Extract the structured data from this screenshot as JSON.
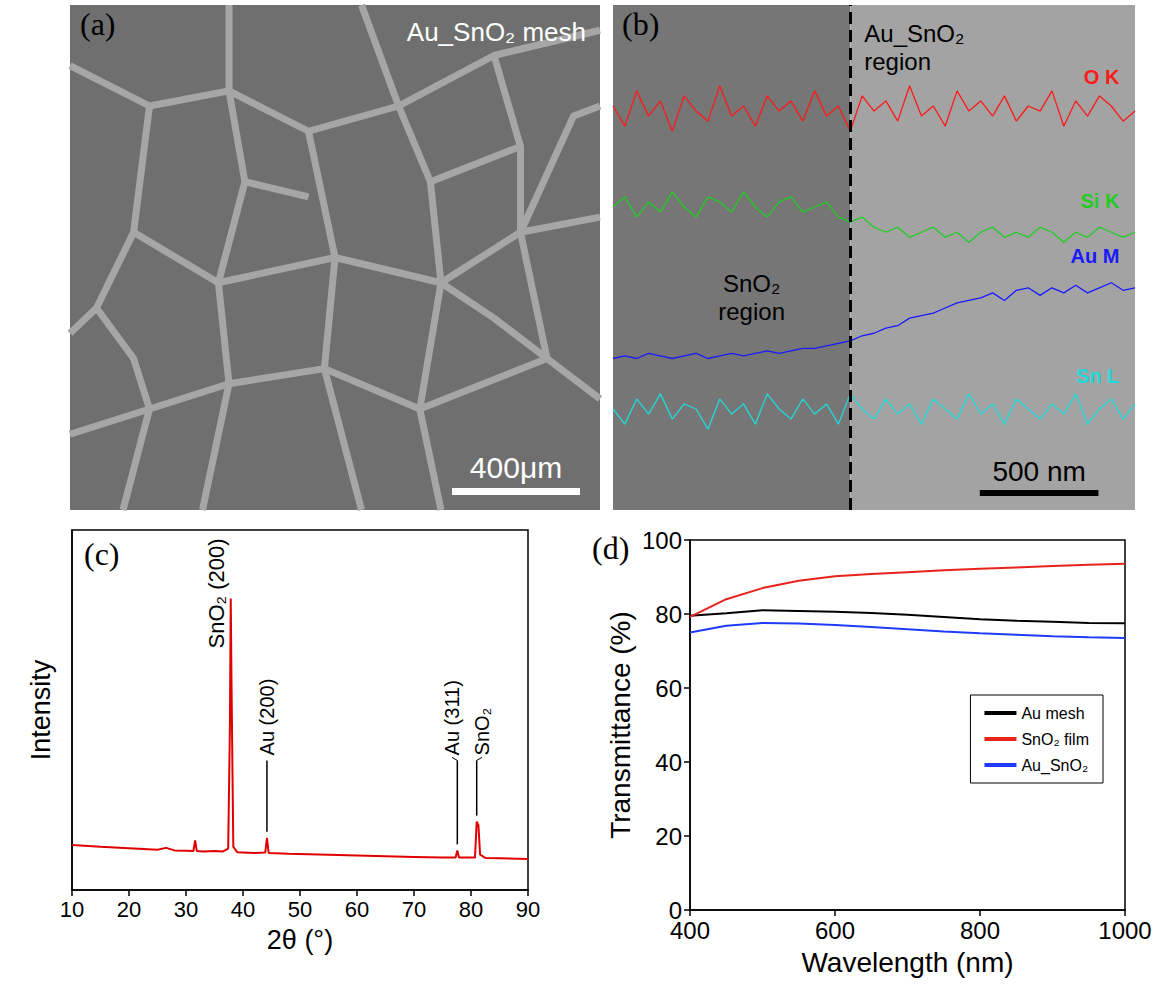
{
  "chart_data": [
    {
      "type": "image",
      "panel_label": "(a)",
      "title": "Au_SnO₂ mesh",
      "scale_bar": {
        "label": "400μm"
      }
    },
    {
      "type": "line",
      "panel_label": "(b)",
      "tick_labels": false,
      "xlim": [
        0,
        2200
      ],
      "ylim": [
        0,
        100
      ],
      "xticks": [],
      "yticks": [],
      "x": [
        0,
        50,
        100,
        150,
        200,
        250,
        300,
        350,
        400,
        450,
        500,
        550,
        600,
        650,
        700,
        750,
        800,
        850,
        900,
        950,
        1000,
        1050,
        1100,
        1150,
        1200,
        1250,
        1300,
        1350,
        1400,
        1450,
        1500,
        1550,
        1600,
        1650,
        1700,
        1750,
        1800,
        1850,
        1900,
        1950,
        2000,
        2050,
        2100,
        2150,
        2200
      ],
      "boundary_x": 1000,
      "regions": [
        "SnO₂ region",
        "Au_SnO₂ region"
      ],
      "scale_bar": {
        "label": "500 nm",
        "length": 500
      },
      "series": [
        {
          "name": "O K",
          "color": "#ff1a1a",
          "values": [
            80,
            76,
            83,
            78,
            81,
            75,
            82,
            79,
            77,
            84,
            78,
            80,
            76,
            82,
            79,
            81,
            77,
            83,
            78,
            80,
            75,
            82,
            79,
            81,
            77,
            84,
            78,
            80,
            76,
            83,
            79,
            81,
            78,
            82,
            77,
            80,
            79,
            83,
            76,
            81,
            78,
            82,
            80,
            77,
            79
          ]
        },
        {
          "name": "Si K",
          "color": "#22cc22",
          "values": [
            60,
            62,
            58,
            61,
            59,
            63,
            60,
            58,
            62,
            61,
            59,
            63,
            60,
            58,
            61,
            62,
            59,
            60,
            61,
            58,
            57,
            58,
            56,
            55,
            56,
            54,
            55,
            56,
            54,
            55,
            53,
            55,
            56,
            54,
            55,
            54,
            56,
            55,
            53,
            55,
            54,
            56,
            55,
            54,
            55
          ]
        },
        {
          "name": "Au M",
          "color": "#1a1aff",
          "values": [
            30,
            30.5,
            30,
            31,
            30.5,
            30,
            30.5,
            31,
            30,
            30.5,
            31,
            30.5,
            31,
            31.5,
            31,
            31.5,
            32,
            32,
            32.5,
            33,
            33.5,
            34.5,
            35,
            36,
            36.5,
            38,
            38.5,
            39,
            40,
            41,
            41.5,
            42,
            43,
            41.5,
            43.5,
            44,
            42.5,
            44,
            43,
            44.5,
            43,
            44,
            45,
            43.5,
            44
          ]
        },
        {
          "name": "Sn L",
          "color": "#22d8d8",
          "values": [
            20,
            17,
            22,
            19,
            23,
            18,
            21,
            20,
            16,
            22,
            19,
            21,
            17,
            23,
            20,
            18,
            22,
            19,
            21,
            17,
            23,
            20,
            18,
            22,
            19,
            21,
            17,
            22,
            20,
            18,
            23,
            19,
            21,
            17,
            22,
            20,
            18,
            21,
            19,
            23,
            17,
            20,
            22,
            18,
            21
          ]
        }
      ]
    },
    {
      "type": "line",
      "panel_label": "(c)",
      "x_label": "2θ (°)",
      "y_label": "Intensity",
      "xlim": [
        10,
        90
      ],
      "xticks": [
        10,
        20,
        30,
        40,
        50,
        60,
        70,
        80,
        90
      ],
      "ylim": [
        0,
        100
      ],
      "yticks": [],
      "tick_labels": "x",
      "grid": false,
      "color": "#e00000",
      "x": [
        10,
        15,
        20,
        25,
        26.5,
        28,
        30,
        31.3,
        31.6,
        31.9,
        33,
        35,
        36.5,
        37.4,
        37.7,
        37.85,
        38,
        38.3,
        39,
        42,
        43.9,
        44.2,
        44.5,
        48,
        55,
        60,
        65,
        70,
        75,
        77.3,
        77.6,
        77.9,
        80.7,
        81,
        81.3,
        81.6,
        82.5,
        85,
        90
      ],
      "values": [
        12.5,
        12,
        11.6,
        11.2,
        11.7,
        11,
        10.9,
        10.8,
        13.8,
        10.8,
        10.7,
        10.8,
        10.7,
        11.5,
        45,
        81,
        55,
        12,
        10.5,
        10.3,
        10.4,
        14.5,
        10.3,
        10.1,
        9.8,
        9.6,
        9.4,
        9.2,
        9,
        9,
        11,
        9,
        9,
        19,
        18,
        9.8,
        8.9,
        8.8,
        8.6
      ],
      "peaks": [
        {
          "label": "SnO₂ (200)",
          "x": 37.85
        },
        {
          "label": "Au (200)",
          "x": 44.2
        },
        {
          "label": "Au (311)",
          "x": 77.6
        },
        {
          "label": "SnO₂",
          "x": 81
        }
      ]
    },
    {
      "type": "line",
      "panel_label": "(d)",
      "x_label": "Wavelength (nm)",
      "y_label": "Transmittance (%)",
      "xlim": [
        400,
        1000
      ],
      "xticks": [
        400,
        600,
        800,
        1000
      ],
      "ylim": [
        0,
        100
      ],
      "yticks": [
        0,
        20,
        40,
        60,
        80,
        100
      ],
      "grid": false,
      "legend": "right",
      "x": [
        400,
        450,
        500,
        550,
        600,
        650,
        700,
        750,
        800,
        850,
        900,
        950,
        1000
      ],
      "series": [
        {
          "name": "Au mesh",
          "color": "#000000",
          "values": [
            79.5,
            80.2,
            81,
            80.8,
            80.6,
            80.3,
            79.8,
            79.2,
            78.6,
            78.2,
            77.9,
            77.6,
            77.5
          ]
        },
        {
          "name": "SnO₂ film",
          "color": "#e8231c",
          "values": [
            79.2,
            84,
            87,
            89,
            90.2,
            90.8,
            91.3,
            91.8,
            92.2,
            92.6,
            93,
            93.3,
            93.6
          ]
        },
        {
          "name": "Au_SnO₂",
          "color": "#1f3bff",
          "values": [
            75,
            76.8,
            77.6,
            77.4,
            77,
            76.5,
            75.9,
            75.3,
            74.8,
            74.4,
            74,
            73.7,
            73.5
          ]
        }
      ]
    }
  ]
}
